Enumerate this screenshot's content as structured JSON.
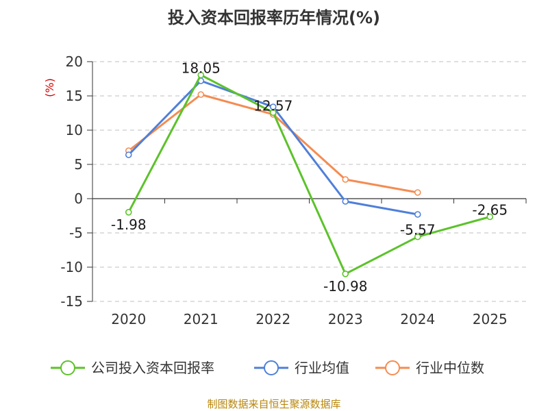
{
  "title": "投入资本回报率历年情况(%)",
  "source_text": "制图数据来自恒生聚源数据库",
  "colors": {
    "company": "#5cc22a",
    "industry_avg": "#4f7fd9",
    "industry_median": "#f48c52",
    "unit": "#d40000",
    "source": "#b8860b",
    "grid": "#cccccc",
    "axis": "#333333"
  },
  "chart_data": {
    "type": "line",
    "title": "投入资本回报率历年情况(%)",
    "ylabel": "(%)",
    "xlabel": "",
    "categories": [
      "2020",
      "2021",
      "2022",
      "2023",
      "2024",
      "2025"
    ],
    "ylim": [
      -15,
      20
    ],
    "yticks": [
      20,
      15,
      10,
      5,
      0,
      -5,
      -10,
      -15
    ],
    "yticks_text": [
      "20",
      "15",
      "10",
      "5",
      "0",
      "-5",
      "-10",
      "-15"
    ],
    "grid": true,
    "legend_position": "bottom",
    "series": [
      {
        "name": "公司投入资本回报率",
        "color_key": "company",
        "values": [
          -1.98,
          18.05,
          12.57,
          -10.98,
          -5.57,
          -2.65
        ],
        "labels": [
          "-1.98",
          "18.05",
          "12.57",
          "-10.98",
          "-5.57",
          "-2.65"
        ]
      },
      {
        "name": "行业均值",
        "color_key": "industry_avg",
        "values": [
          6.4,
          17.2,
          13.4,
          -0.4,
          -2.3,
          null
        ]
      },
      {
        "name": "行业中位数",
        "color_key": "industry_median",
        "values": [
          7.0,
          15.2,
          12.3,
          2.8,
          0.9,
          null
        ]
      }
    ]
  }
}
